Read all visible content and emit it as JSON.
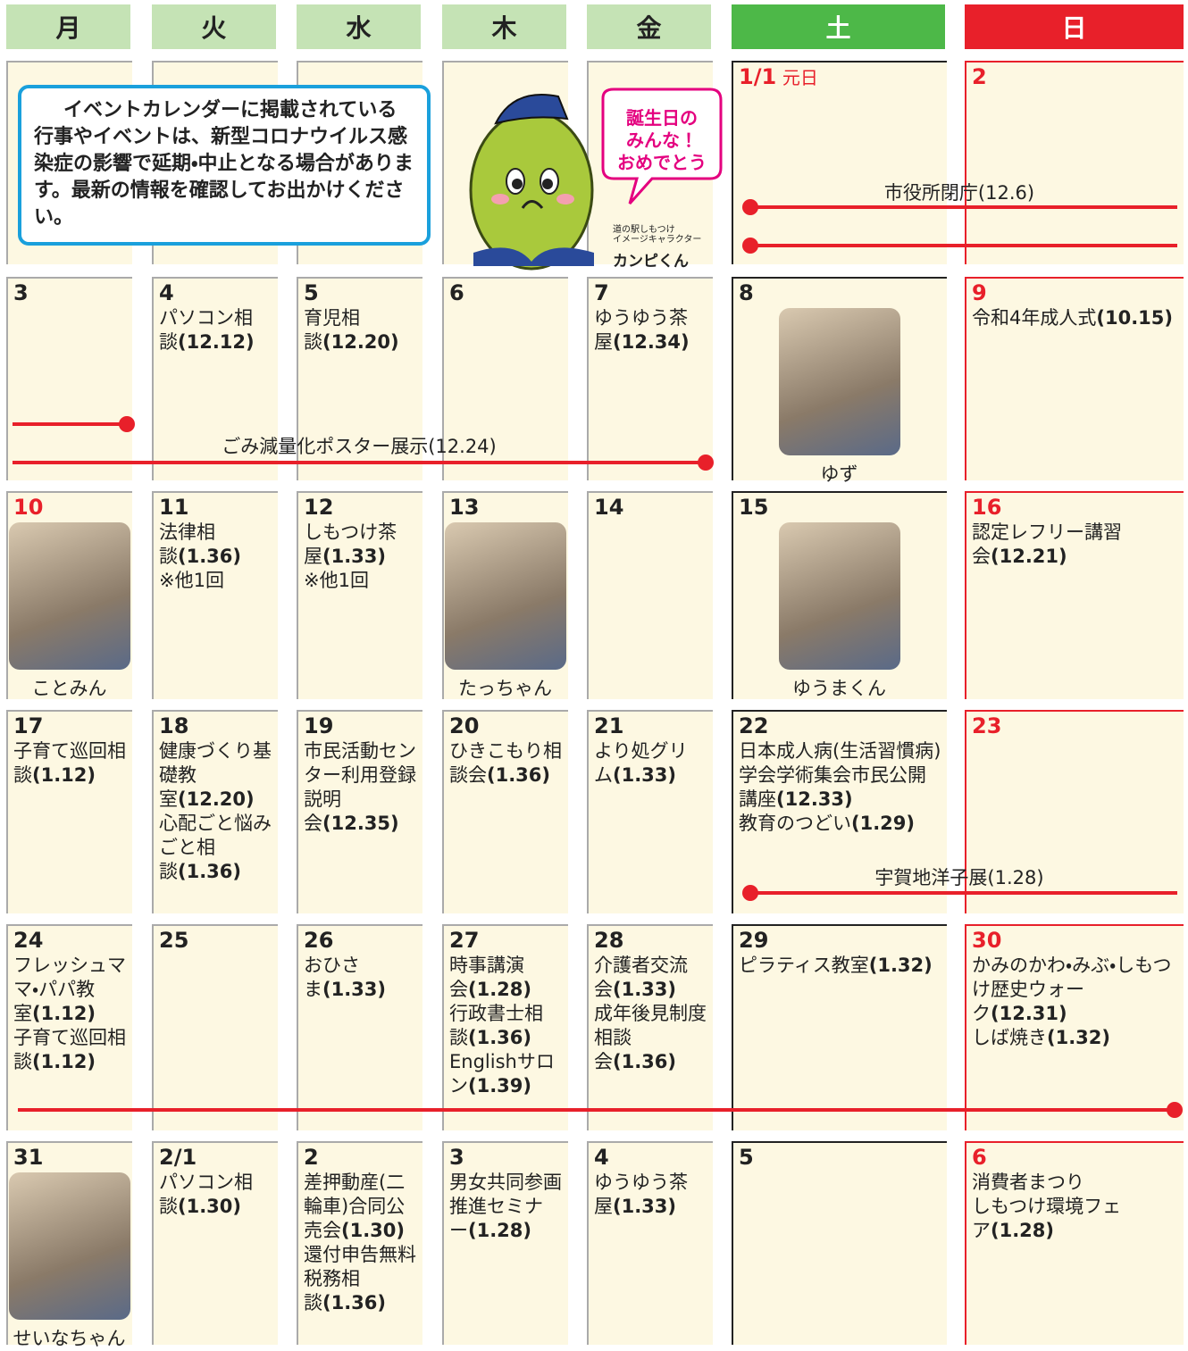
{
  "header": {
    "days": [
      "月",
      "火",
      "水",
      "木",
      "金",
      "土",
      "日"
    ]
  },
  "notice": "イベントカレンダーに掲載されている行事やイベントは、新型コロナウイルス感染症の影響で延期・中止となる場合があります。最新の情報を確認してお出かけください。",
  "mascot": {
    "speech": "誕生日の\nみんな！\nおめでとう",
    "caption": "道の駅しもつけ\nイメージキャラクター",
    "name": "カンピくん"
  },
  "bars": [
    {
      "label": "市役所閉庁(12.6)"
    },
    {
      "label": "ごみ減量化ポスター展示(12.24)"
    },
    {
      "label": "宇賀地洋子展(1.28)"
    }
  ],
  "weeks": [
    [
      {},
      {},
      {},
      {},
      {},
      {
        "day": "1/1",
        "note": "元日",
        "holiday": true
      },
      {
        "day": "2"
      }
    ],
    [
      {
        "day": "3"
      },
      {
        "day": "4",
        "events": [
          {
            "name": "パソコン相談",
            "page": "(12.12)"
          }
        ]
      },
      {
        "day": "5",
        "events": [
          {
            "name": "育児相談",
            "page": "(12.20)"
          }
        ]
      },
      {
        "day": "6"
      },
      {
        "day": "7",
        "events": [
          {
            "name": "ゆうゆう茶屋",
            "page": "(12.34)"
          }
        ]
      },
      {
        "day": "8",
        "photo": "ゆず"
      },
      {
        "day": "9",
        "events": [
          {
            "name": "令和4年成人式",
            "page": "(10.15)"
          }
        ]
      }
    ],
    [
      {
        "day": "10",
        "photo": "ことみん",
        "holiday": true
      },
      {
        "day": "11",
        "events": [
          {
            "name": "法律相談",
            "page": "(1.36)"
          }
        ],
        "note": "※他1回"
      },
      {
        "day": "12",
        "events": [
          {
            "name": "しもつけ茶屋",
            "page": "(1.33)"
          }
        ],
        "note": "※他1回"
      },
      {
        "day": "13",
        "photo": "たっちゃん"
      },
      {
        "day": "14"
      },
      {
        "day": "15",
        "photo": "ゆうまくん"
      },
      {
        "day": "16",
        "events": [
          {
            "name": "認定レフリー講習会",
            "page": "(12.21)"
          }
        ]
      }
    ],
    [
      {
        "day": "17",
        "events": [
          {
            "name": "子育て巡回相談",
            "page": "(1.12)"
          }
        ]
      },
      {
        "day": "18",
        "events": [
          {
            "name": "健康づくり基礎教室",
            "page": "(12.20)"
          },
          {
            "name": "心配ごと悩みごと相談",
            "page": "(1.36)"
          }
        ]
      },
      {
        "day": "19",
        "events": [
          {
            "name": "市民活動センター利用登録説明会",
            "page": "(12.35)"
          }
        ]
      },
      {
        "day": "20",
        "events": [
          {
            "name": "ひきこもり相談会",
            "page": "(1.36)"
          }
        ]
      },
      {
        "day": "21",
        "events": [
          {
            "name": "より処グリム",
            "page": "(1.33)"
          }
        ]
      },
      {
        "day": "22",
        "events": [
          {
            "name": "日本成人病(生活習慣病)学会学術集会市民公開講座",
            "page": "(12.33)"
          },
          {
            "name": "教育のつどい",
            "page": "(1.29)"
          }
        ]
      },
      {
        "day": "23"
      }
    ],
    [
      {
        "day": "24",
        "events": [
          {
            "name": "フレッシュママ・パパ教室",
            "page": "(1.12)"
          },
          {
            "name": "子育て巡回相談",
            "page": "(1.12)"
          }
        ]
      },
      {
        "day": "25"
      },
      {
        "day": "26",
        "events": [
          {
            "name": "おひさま",
            "page": "(1.33)"
          }
        ]
      },
      {
        "day": "27",
        "events": [
          {
            "name": "時事講演会",
            "page": "(1.28)"
          },
          {
            "name": "行政書士相談",
            "page": "(1.36)"
          },
          {
            "name": "Englishサロン",
            "page": "(1.39)"
          }
        ]
      },
      {
        "day": "28",
        "events": [
          {
            "name": "介護者交流会",
            "page": "(1.33)"
          },
          {
            "name": "成年後見制度相談会",
            "page": "(1.36)"
          }
        ]
      },
      {
        "day": "29",
        "events": [
          {
            "name": "ピラティス教室",
            "page": "(1.32)"
          }
        ]
      },
      {
        "day": "30",
        "events": [
          {
            "name": "かみのかわ・みぶ・しもつけ歴史ウォーク",
            "page": "(12.31)"
          },
          {
            "name": "しば焼き",
            "page": "(1.32)"
          }
        ]
      }
    ],
    [
      {
        "day": "31",
        "photo": "せいなちゃん"
      },
      {
        "day": "2/1",
        "events": [
          {
            "name": "パソコン相談",
            "page": "(1.30)"
          }
        ]
      },
      {
        "day": "2",
        "events": [
          {
            "name": "差押動産(二輪車)合同公売会",
            "page": "(1.30)"
          },
          {
            "name": "還付申告無料税務相談",
            "page": "(1.36)"
          }
        ]
      },
      {
        "day": "3",
        "events": [
          {
            "name": "男女共同参画推進セミナー",
            "page": "(1.28)"
          }
        ]
      },
      {
        "day": "4",
        "events": [
          {
            "name": "ゆうゆう茶屋",
            "page": "(1.33)"
          }
        ]
      },
      {
        "day": "5"
      },
      {
        "day": "6",
        "events": [
          {
            "name": "消費者まつり\nしもつけ環境フェア",
            "page": "(1.28)"
          }
        ]
      }
    ]
  ]
}
